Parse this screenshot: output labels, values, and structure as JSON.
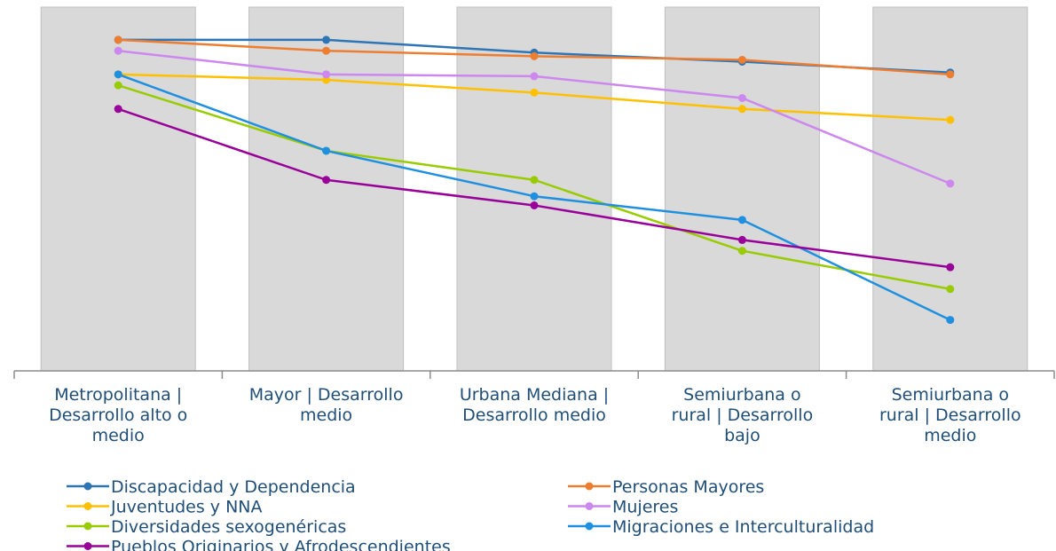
{
  "chart_data": {
    "type": "line",
    "title": "",
    "xlabel": "",
    "ylabel": "",
    "ylim": [
      0,
      100
    ],
    "grid": false,
    "legend_position": "bottom",
    "category_bands": true,
    "categories": [
      [
        "Metropolitana |",
        "Desarrollo alto o",
        "medio"
      ],
      [
        "Mayor | Desarrollo",
        "medio"
      ],
      [
        "Urbana Mediana |",
        "Desarrollo medio"
      ],
      [
        "Semiurbana o",
        "rural | Desarrollo",
        "bajo"
      ],
      [
        "Semiurbana o",
        "rural | Desarrollo",
        "medio"
      ]
    ],
    "series": [
      {
        "name": "Discapacidad y Dependencia",
        "color": "#2E75B6",
        "values": [
          91,
          91,
          87.5,
          85,
          82
        ]
      },
      {
        "name": "Personas Mayores",
        "color": "#ED7D31",
        "values": [
          91,
          88,
          86.5,
          85.5,
          81.5
        ]
      },
      {
        "name": "Juventudes y NNA",
        "color": "#FFC000",
        "values": [
          81.5,
          80,
          76.5,
          72,
          69
        ]
      },
      {
        "name": "Mujeres",
        "color": "#CC88EE",
        "values": [
          88,
          81.5,
          81,
          75,
          51.5
        ]
      },
      {
        "name": "Diversidades sexogenéricas",
        "color": "#99CC00",
        "values": [
          78.5,
          60.5,
          52.5,
          33,
          22.5
        ]
      },
      {
        "name": "Migraciones e Interculturalidad",
        "color": "#1F8FE0",
        "values": [
          81.5,
          60.5,
          48,
          41.5,
          14
        ]
      },
      {
        "name": "Pueblos Originarios y Afrodescendientes",
        "color": "#990099",
        "values": [
          72,
          52.5,
          45.5,
          36,
          28.5
        ]
      }
    ]
  }
}
